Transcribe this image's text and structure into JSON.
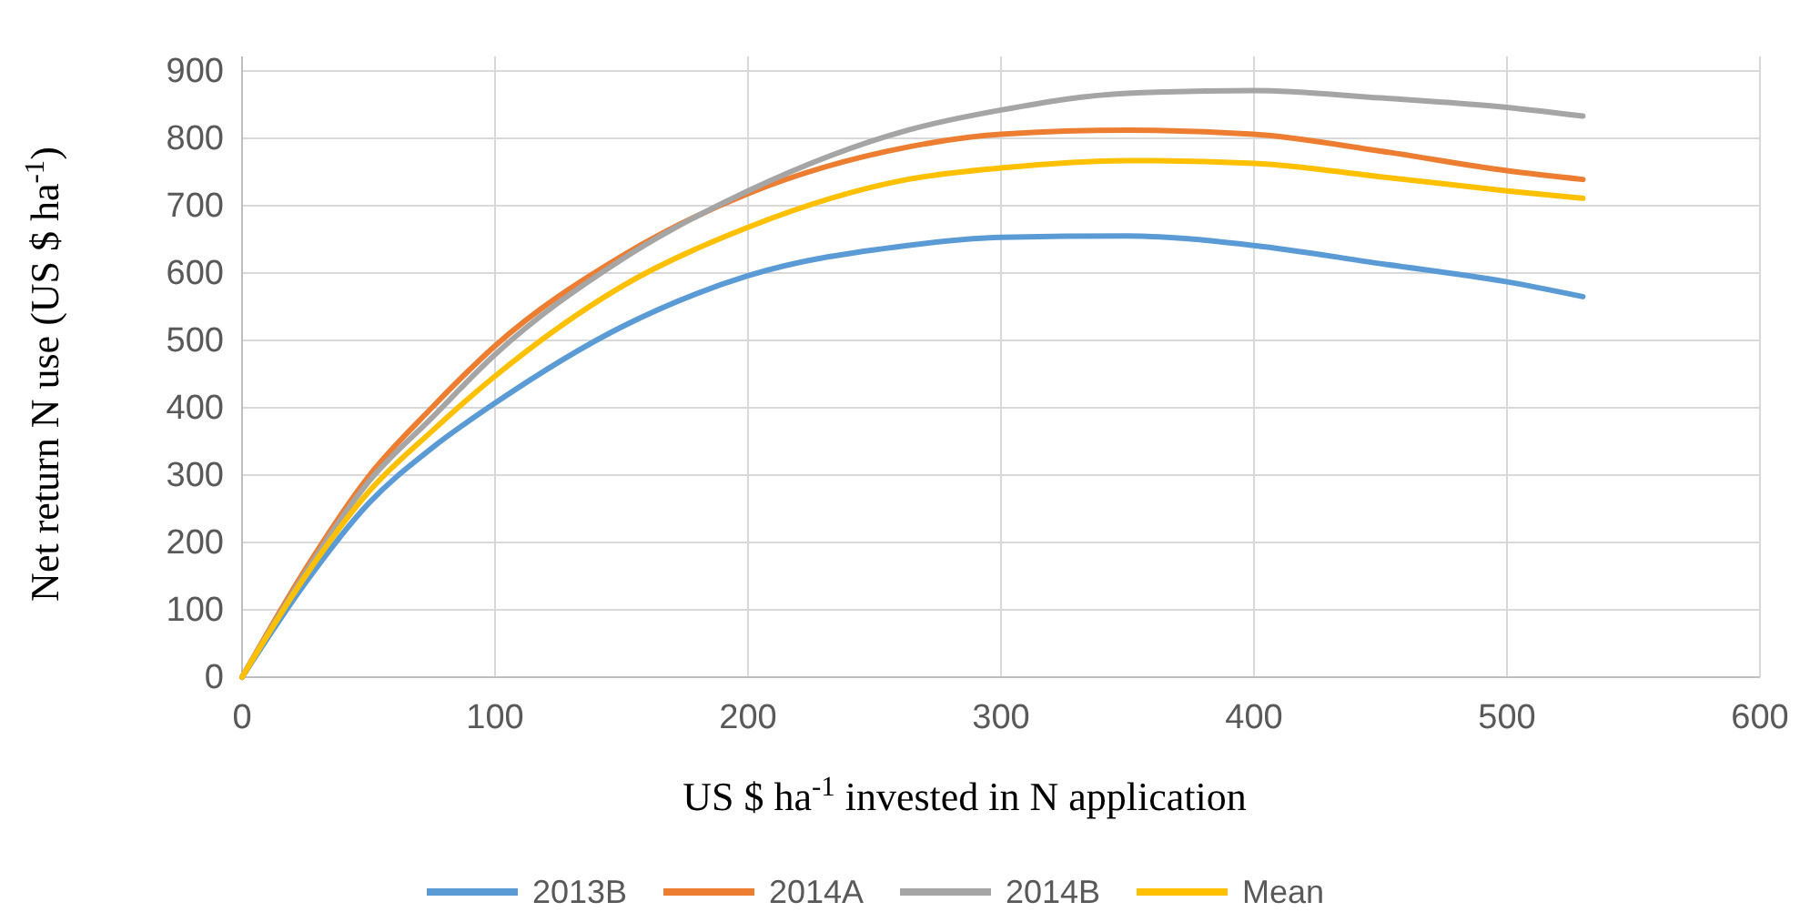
{
  "chart_data": {
    "type": "line",
    "xlabel": "US $ ha$^{-1}$ invested in N application",
    "ylabel": "Net return N use (US $ ha$^{-1}$)",
    "x": [
      0,
      25,
      50,
      75,
      100,
      150,
      200,
      263,
      300,
      350,
      400,
      450,
      500,
      530
    ],
    "series": [
      {
        "name": "2013B",
        "color": "#5b9bd5",
        "values": [
          0,
          140,
          258,
          340,
          407,
          520,
          596,
          641,
          653,
          655,
          641,
          614,
          587,
          565
        ]
      },
      {
        "name": "2014A",
        "color": "#ed7d31",
        "values": [
          0,
          160,
          298,
          400,
          492,
          625,
          718,
          787,
          806,
          812,
          806,
          781,
          752,
          739
        ]
      },
      {
        "name": "2014B",
        "color": "#a5a5a5",
        "values": [
          0,
          155,
          290,
          385,
          479,
          620,
          722,
          812,
          842,
          867,
          871,
          860,
          846,
          833
        ]
      },
      {
        "name": "Mean",
        "color": "#ffc000",
        "values": [
          0,
          150,
          275,
          365,
          447,
          580,
          668,
          739,
          756,
          767,
          763,
          743,
          722,
          711
        ]
      }
    ],
    "xlim": [
      0,
      600
    ],
    "xticks": [
      0,
      100,
      200,
      300,
      400,
      500,
      600
    ],
    "ylim": [
      0,
      900
    ],
    "yticks": [
      0,
      100,
      200,
      300,
      400,
      500,
      600,
      700,
      800,
      900
    ],
    "grid": true,
    "legend": "bottom",
    "marker": "none",
    "line_style": "solid"
  }
}
